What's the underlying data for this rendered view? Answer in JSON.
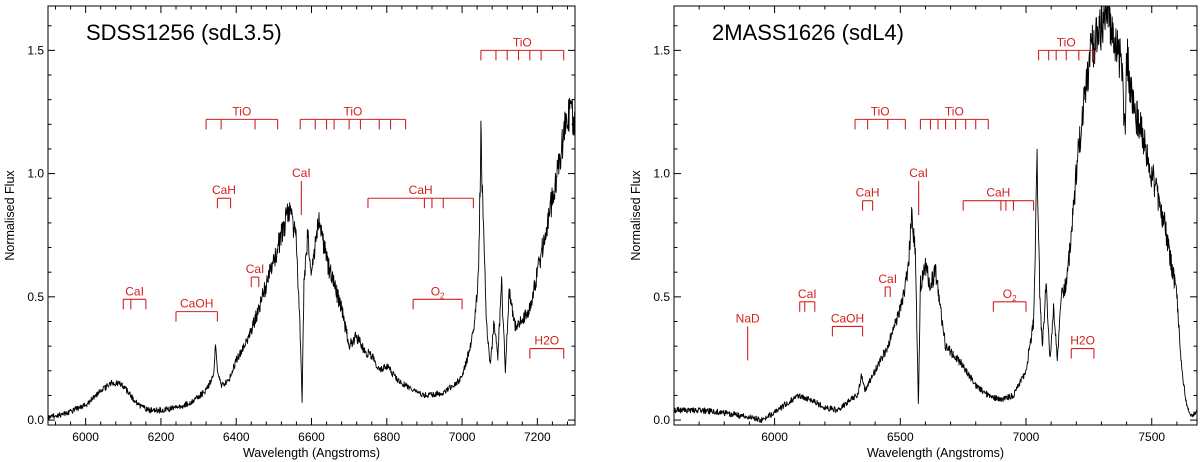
{
  "figure": {
    "panels": [
      {
        "title": "SDSS1256 (sdL3.5)",
        "xlabel": "Wavelength (Angstroms)",
        "ylabel": "Normalised Flux"
      },
      {
        "title": "2MASS1626 (sdL4)",
        "xlabel": "Wavelength (Angstroms)",
        "ylabel": "Normalised Flux"
      }
    ]
  },
  "colors": {
    "spectrum": "#000000",
    "features": "#d42020"
  },
  "chart_data": [
    {
      "type": "line",
      "title": "SDSS1256 (sdL3.5)",
      "xlabel": "Wavelength (Angstroms)",
      "ylabel": "Normalised Flux",
      "xlim": [
        5900,
        7300
      ],
      "ylim": [
        -0.02,
        1.68
      ],
      "xticks": [
        6000,
        6200,
        6400,
        6600,
        6800,
        7000,
        7200
      ],
      "yticks": [
        0.0,
        0.5,
        1.0,
        1.5
      ],
      "series": [
        {
          "x": [
            5900,
            5950,
            6000,
            6040,
            6070,
            6090,
            6110,
            6140,
            6170,
            6200,
            6240,
            6280,
            6320,
            6340,
            6345,
            6350,
            6360,
            6380,
            6400,
            6430,
            6460,
            6480,
            6500,
            6520,
            6540,
            6550,
            6560,
            6570,
            6575,
            6580,
            6590,
            6600,
            6620,
            6640,
            6660,
            6680,
            6700,
            6720,
            6740,
            6760,
            6780,
            6800,
            6830,
            6860,
            6900,
            6950,
            7000,
            7030,
            7044,
            7050,
            7058,
            7065,
            7075,
            7085,
            7095,
            7105,
            7115,
            7125,
            7140,
            7160,
            7180,
            7200,
            7220,
            7240,
            7260,
            7280,
            7300
          ],
          "y": [
            0.01,
            0.03,
            0.06,
            0.12,
            0.15,
            0.15,
            0.12,
            0.06,
            0.04,
            0.04,
            0.05,
            0.07,
            0.12,
            0.18,
            0.3,
            0.2,
            0.14,
            0.16,
            0.24,
            0.33,
            0.45,
            0.55,
            0.65,
            0.75,
            0.85,
            0.8,
            0.72,
            0.35,
            0.08,
            0.55,
            0.75,
            0.6,
            0.82,
            0.65,
            0.55,
            0.45,
            0.3,
            0.34,
            0.28,
            0.26,
            0.2,
            0.22,
            0.16,
            0.13,
            0.1,
            0.11,
            0.17,
            0.35,
            0.6,
            1.15,
            0.7,
            0.4,
            0.22,
            0.4,
            0.26,
            0.55,
            0.2,
            0.52,
            0.38,
            0.4,
            0.45,
            0.6,
            0.75,
            0.9,
            1.05,
            1.25,
            1.22
          ]
        }
      ],
      "annotations": [
        {
          "label": "TiO",
          "x": [
            7050,
            7090,
            7120,
            7150,
            7180,
            7210,
            7270
          ],
          "y": 1.5,
          "bracket": true
        },
        {
          "label": "TiO",
          "x": [
            6320,
            6360,
            6450,
            6510
          ],
          "y": 1.22,
          "bracket": true
        },
        {
          "label": "TiO",
          "x": [
            6570,
            6610,
            6640,
            6660,
            6700,
            6730,
            6780,
            6810,
            6850
          ],
          "y": 1.22,
          "bracket": true
        },
        {
          "label": "CaI",
          "x": [
            6573
          ],
          "y": 0.97,
          "bracket": false
        },
        {
          "label": "CaH",
          "x": [
            6350,
            6385
          ],
          "y": 0.9,
          "bracket": true
        },
        {
          "label": "CaH",
          "x": [
            6750,
            6900,
            6920,
            6950,
            7030
          ],
          "y": 0.9,
          "bracket": true
        },
        {
          "label": "CaI",
          "x": [
            6440,
            6460
          ],
          "y": 0.58,
          "bracket": true
        },
        {
          "label": "CaI",
          "x": [
            6100,
            6120,
            6160
          ],
          "y": 0.49,
          "bracket": true
        },
        {
          "label": "CaOH",
          "x": [
            6240,
            6350
          ],
          "y": 0.44,
          "bracket": true
        },
        {
          "label": "O2",
          "x": [
            6870,
            7000
          ],
          "y": 0.49,
          "bracket": true
        },
        {
          "label": "H2O",
          "x": [
            7180,
            7270
          ],
          "y": 0.29,
          "bracket": true
        }
      ]
    },
    {
      "type": "line",
      "title": "2MASS1626 (sdL4)",
      "xlabel": "Wavelength (Angstroms)",
      "ylabel": "Normalised Flux",
      "xlim": [
        5600,
        7680
      ],
      "ylim": [
        -0.02,
        1.68
      ],
      "xticks": [
        6000,
        6500,
        7000,
        7500
      ],
      "yticks": [
        0.0,
        0.5,
        1.0,
        1.5
      ],
      "series": [
        {
          "x": [
            5600,
            5700,
            5800,
            5900,
            5950,
            6000,
            6050,
            6100,
            6150,
            6200,
            6250,
            6300,
            6330,
            6345,
            6360,
            6400,
            6450,
            6500,
            6530,
            6545,
            6560,
            6572,
            6580,
            6600,
            6620,
            6640,
            6660,
            6680,
            6700,
            6750,
            6800,
            6850,
            6900,
            6950,
            7000,
            7030,
            7044,
            7055,
            7065,
            7080,
            7095,
            7110,
            7125,
            7140,
            7160,
            7180,
            7200,
            7230,
            7260,
            7300,
            7330,
            7350,
            7380,
            7395,
            7400,
            7420,
            7450,
            7500,
            7550,
            7600,
            7620,
            7640,
            7660,
            7680
          ],
          "y": [
            0.04,
            0.04,
            0.03,
            0.01,
            0.0,
            0.03,
            0.07,
            0.1,
            0.08,
            0.05,
            0.04,
            0.08,
            0.1,
            0.18,
            0.12,
            0.2,
            0.3,
            0.45,
            0.6,
            0.83,
            0.7,
            0.05,
            0.55,
            0.62,
            0.55,
            0.6,
            0.45,
            0.3,
            0.28,
            0.22,
            0.14,
            0.1,
            0.08,
            0.1,
            0.2,
            0.4,
            1.05,
            0.5,
            0.3,
            0.55,
            0.25,
            0.45,
            0.25,
            0.5,
            0.55,
            0.75,
            1.0,
            1.3,
            1.5,
            1.6,
            1.65,
            1.55,
            1.45,
            1.15,
            1.5,
            1.3,
            1.2,
            1.0,
            0.8,
            0.5,
            0.2,
            0.05,
            0.02,
            0.04
          ]
        }
      ],
      "annotations": [
        {
          "label": "TiO",
          "x": [
            7050,
            7090,
            7120,
            7160,
            7210,
            7270
          ],
          "y": 1.5,
          "bracket": true
        },
        {
          "label": "TiO",
          "x": [
            6320,
            6370,
            6450,
            6520
          ],
          "y": 1.22,
          "bracket": true
        },
        {
          "label": "TiO",
          "x": [
            6580,
            6620,
            6650,
            6680,
            6720,
            6760,
            6800,
            6850
          ],
          "y": 1.22,
          "bracket": true
        },
        {
          "label": "CaI",
          "x": [
            6573
          ],
          "y": 0.97,
          "bracket": false
        },
        {
          "label": "CaH",
          "x": [
            6350,
            6390
          ],
          "y": 0.89,
          "bracket": true
        },
        {
          "label": "CaH",
          "x": [
            6750,
            6900,
            6920,
            6950,
            7030
          ],
          "y": 0.89,
          "bracket": true
        },
        {
          "label": "CaI",
          "x": [
            6440,
            6460
          ],
          "y": 0.54,
          "bracket": true
        },
        {
          "label": "CaI",
          "x": [
            6100,
            6120,
            6160
          ],
          "y": 0.48,
          "bracket": true
        },
        {
          "label": "NaD",
          "x": [
            5893
          ],
          "y": 0.38,
          "bracket": false
        },
        {
          "label": "CaOH",
          "x": [
            6230,
            6350
          ],
          "y": 0.38,
          "bracket": true
        },
        {
          "label": "O2",
          "x": [
            6870,
            7000
          ],
          "y": 0.48,
          "bracket": true
        },
        {
          "label": "H2O",
          "x": [
            7180,
            7270
          ],
          "y": 0.29,
          "bracket": true
        }
      ]
    }
  ]
}
